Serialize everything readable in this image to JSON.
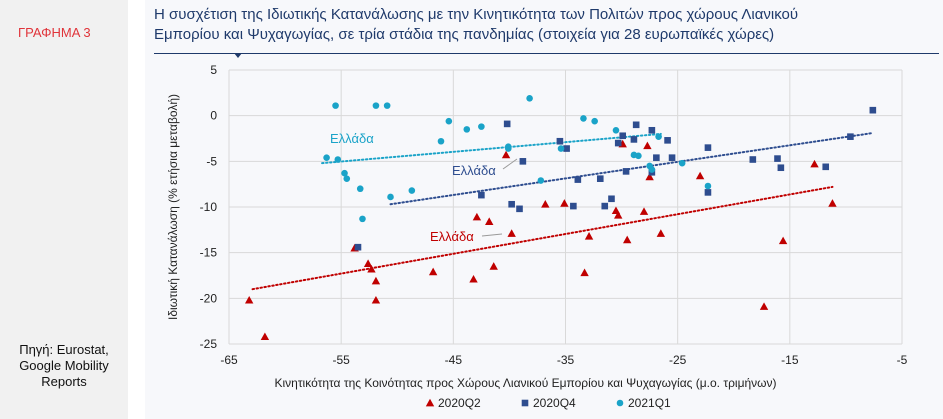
{
  "sidebar": {
    "label": "ΓΡΑΦΗΜΑ 3",
    "source_lines": [
      "Πηγή: Eurostat,",
      "Google Mobility",
      "Reports"
    ]
  },
  "header": {
    "title_line1": "Η συσχέτιση της Ιδιωτικής Κατανάλωσης με την Κινητικότητα των Πολιτών προς χώρους Λιανικού",
    "title_line2": "Εμπορίου και Ψυχαγωγίας, σε τρία στάδια της πανδημίας (στοιχεία για 28 ευρωπαϊκές χώρες)"
  },
  "colors": {
    "q2": "#c00000",
    "q4": "#2e4d8f",
    "q1": "#1aa3c8"
  },
  "chart_data": {
    "type": "scatter",
    "xlabel": "Κινητικότητα   της Κοινότητας   προς Χώρους   Λιανικού Εμπορίου   και Ψυχαγωγίας   (μ.ο. τριμήνων)",
    "ylabel": "Ιδιωτική Κατανάλωση (% ετήσια μεταβολή)",
    "xlim": [
      -65,
      -5
    ],
    "ylim": [
      -25,
      5
    ],
    "xticks": [
      -65,
      -55,
      -45,
      -35,
      -25,
      -15,
      -5
    ],
    "yticks": [
      -25,
      -20,
      -15,
      -10,
      -5,
      0,
      5
    ],
    "grid": true,
    "legend_position": "bottom",
    "series": [
      {
        "name": "2020Q2",
        "marker": "triangle",
        "color": "#c00000",
        "trend": [
          [
            -62.9,
            -19
          ],
          [
            -11.2,
            -7.8
          ]
        ],
        "annotation": "Ελλάδα",
        "points": [
          [
            -63.2,
            -20.2
          ],
          [
            -61.8,
            -24.2
          ],
          [
            -53.8,
            -14.5
          ],
          [
            -52.6,
            -16.2
          ],
          [
            -52.3,
            -16.8
          ],
          [
            -51.9,
            -20.2
          ],
          [
            -51.9,
            -18.1
          ],
          [
            -46.8,
            -17.1
          ],
          [
            -43.2,
            -17.9
          ],
          [
            -42.9,
            -11.1
          ],
          [
            -41.8,
            -11.6
          ],
          [
            -41.4,
            -16.5
          ],
          [
            -39.8,
            -12.9
          ],
          [
            -40.3,
            -4.3
          ],
          [
            -36.8,
            -9.7
          ],
          [
            -35.1,
            -9.6
          ],
          [
            -33.3,
            -17.2
          ],
          [
            -32.9,
            -13.2
          ],
          [
            -30.5,
            -10.4
          ],
          [
            -30.3,
            -10.9
          ],
          [
            -29.9,
            -3.1
          ],
          [
            -29.5,
            -13.6
          ],
          [
            -28.0,
            -10.5
          ],
          [
            -27.7,
            -3.3
          ],
          [
            -27.5,
            -6.7
          ],
          [
            -26.5,
            -12.9
          ],
          [
            -23.0,
            -6.6
          ],
          [
            -17.3,
            -20.9
          ],
          [
            -15.6,
            -13.7
          ],
          [
            -12.8,
            -5.3
          ],
          [
            -11.2,
            -9.6
          ]
        ]
      },
      {
        "name": "2020Q4",
        "marker": "square",
        "color": "#2e4d8f",
        "trend": [
          [
            -50.6,
            -9.7
          ],
          [
            -7.6,
            -1.9
          ]
        ],
        "annotation": "Ελλάδα",
        "points": [
          [
            -53.5,
            -14.4
          ],
          [
            -42.5,
            -8.7
          ],
          [
            -40.2,
            -0.9
          ],
          [
            -39.8,
            -9.7
          ],
          [
            -39.1,
            -10.2
          ],
          [
            -38.8,
            -5.0
          ],
          [
            -35.5,
            -2.8
          ],
          [
            -34.9,
            -3.6
          ],
          [
            -34.3,
            -9.9
          ],
          [
            -33.9,
            -7.0
          ],
          [
            -31.9,
            -6.9
          ],
          [
            -31.5,
            -9.9
          ],
          [
            -30.9,
            -9.1
          ],
          [
            -30.3,
            -3.0
          ],
          [
            -29.9,
            -2.2
          ],
          [
            -29.6,
            -6.1
          ],
          [
            -28.9,
            -2.6
          ],
          [
            -28.7,
            -1.0
          ],
          [
            -27.3,
            -6.2
          ],
          [
            -27.3,
            -1.6
          ],
          [
            -26.9,
            -4.6
          ],
          [
            -25.9,
            -2.7
          ],
          [
            -25.5,
            -4.6
          ],
          [
            -22.3,
            -8.4
          ],
          [
            -22.3,
            -3.5
          ],
          [
            -18.3,
            -4.8
          ],
          [
            -16.1,
            -4.7
          ],
          [
            -15.8,
            -5.7
          ],
          [
            -11.8,
            -5.6
          ],
          [
            -9.6,
            -2.3
          ],
          [
            -7.6,
            0.6
          ]
        ]
      },
      {
        "name": "2021Q1",
        "marker": "circle",
        "color": "#1aa3c8",
        "trend": [
          [
            -56.7,
            -5.2
          ],
          [
            -26.5,
            -2.0
          ]
        ],
        "annotation": "Ελλάδα",
        "points": [
          [
            -56.3,
            -4.6
          ],
          [
            -55.5,
            1.1
          ],
          [
            -55.3,
            -4.8
          ],
          [
            -54.7,
            -6.3
          ],
          [
            -54.5,
            -6.9
          ],
          [
            -53.3,
            -8.0
          ],
          [
            -53.1,
            -11.3
          ],
          [
            -51.9,
            1.1
          ],
          [
            -50.9,
            1.1
          ],
          [
            -50.6,
            -8.9
          ],
          [
            -48.7,
            -8.2
          ],
          [
            -46.1,
            -2.8
          ],
          [
            -45.4,
            -0.6
          ],
          [
            -43.8,
            -1.5
          ],
          [
            -42.5,
            -1.2
          ],
          [
            -40.1,
            -3.6
          ],
          [
            -40.1,
            -3.4
          ],
          [
            -38.2,
            1.9
          ],
          [
            -37.2,
            -7.1
          ],
          [
            -35.4,
            -3.6
          ],
          [
            -33.4,
            -0.3
          ],
          [
            -32.4,
            -0.6
          ],
          [
            -30.5,
            -1.6
          ],
          [
            -28.9,
            -4.3
          ],
          [
            -28.5,
            -4.4
          ],
          [
            -27.5,
            -5.5
          ],
          [
            -27.3,
            -5.9
          ],
          [
            -26.7,
            -2.3
          ],
          [
            -24.6,
            -5.2
          ],
          [
            -22.3,
            -7.7
          ]
        ]
      }
    ]
  }
}
